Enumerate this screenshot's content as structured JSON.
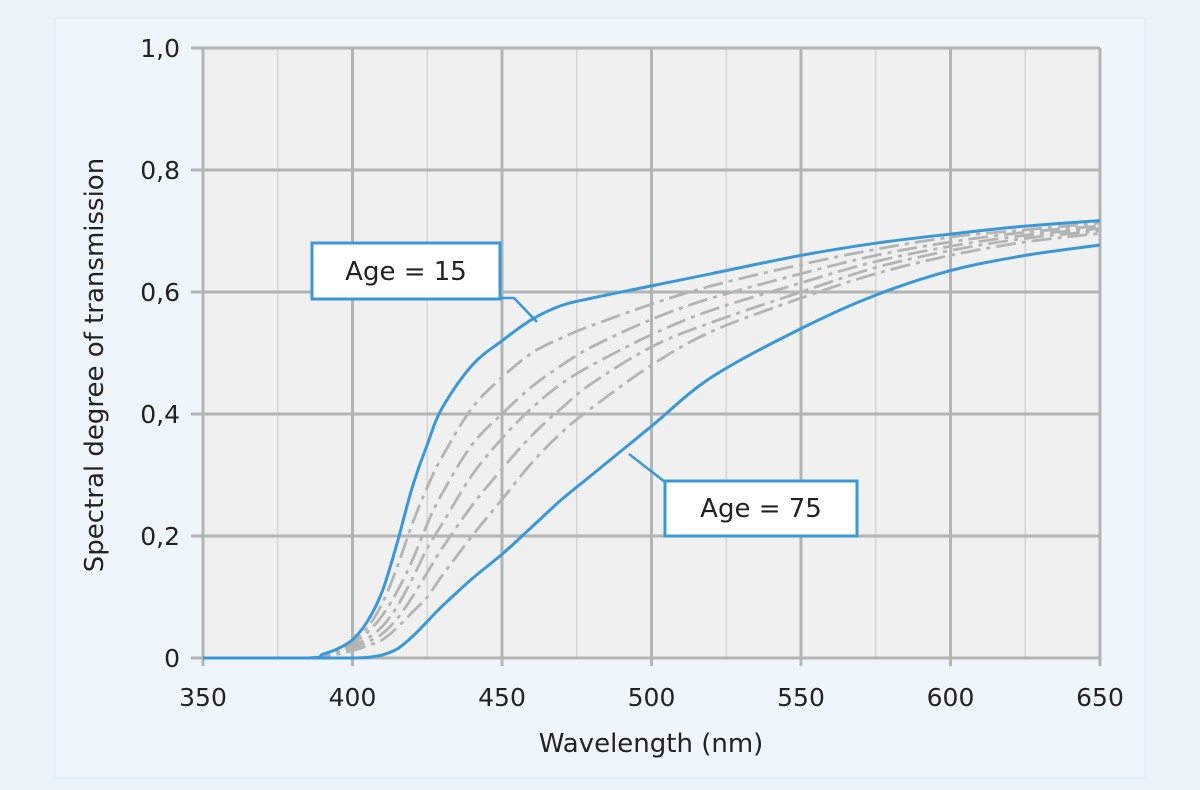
{
  "chart_data": {
    "type": "line",
    "title": "",
    "xlabel": "Wavelength (nm)",
    "ylabel": "Spectral degree of transmission",
    "xlim": [
      350,
      650
    ],
    "ylim": [
      0,
      1
    ],
    "x_ticks": [
      350,
      400,
      450,
      500,
      550,
      600,
      650
    ],
    "x_tick_labels": [
      "350",
      "400",
      "450",
      "500",
      "550",
      "600",
      "650"
    ],
    "y_ticks": [
      0,
      0.2,
      0.4,
      0.6,
      0.8,
      1.0
    ],
    "y_tick_labels": [
      "0",
      "0,2",
      "0,4",
      "0,6",
      "0,8",
      "1,0"
    ],
    "grid": true,
    "x_minor_grid_step": 25,
    "x": [
      350,
      385,
      390,
      395,
      400,
      405,
      410,
      415,
      420,
      425,
      430,
      440,
      450,
      460,
      470,
      480,
      500,
      520,
      550,
      575,
      600,
      625,
      650
    ],
    "series": [
      {
        "name": "Age = 15",
        "style": "solid",
        "color": "#3a98d8",
        "values": [
          0,
          0,
          0.006,
          0.015,
          0.03,
          0.06,
          0.11,
          0.19,
          0.28,
          0.35,
          0.41,
          0.48,
          0.52,
          0.555,
          0.578,
          0.59,
          0.61,
          0.63,
          0.66,
          0.68,
          0.695,
          0.708,
          0.717
        ]
      },
      {
        "style": "dash-dot",
        "color": "#b3b5b4",
        "values": [
          0,
          0,
          0.006,
          0.014,
          0.027,
          0.05,
          0.09,
          0.15,
          0.22,
          0.28,
          0.33,
          0.41,
          0.46,
          0.5,
          0.525,
          0.545,
          0.58,
          0.61,
          0.645,
          0.67,
          0.69,
          0.702,
          0.713
        ]
      },
      {
        "style": "dash-dot",
        "color": "#b3b5b4",
        "values": [
          0,
          0,
          0.005,
          0.013,
          0.024,
          0.042,
          0.07,
          0.11,
          0.16,
          0.22,
          0.27,
          0.35,
          0.4,
          0.445,
          0.48,
          0.51,
          0.555,
          0.59,
          0.63,
          0.66,
          0.682,
          0.698,
          0.708
        ]
      },
      {
        "style": "dash-dot",
        "color": "#b3b5b4",
        "values": [
          0,
          0,
          0.004,
          0.01,
          0.02,
          0.032,
          0.052,
          0.085,
          0.13,
          0.18,
          0.22,
          0.3,
          0.36,
          0.41,
          0.45,
          0.48,
          0.53,
          0.57,
          0.615,
          0.65,
          0.675,
          0.693,
          0.704
        ]
      },
      {
        "style": "dash-dot",
        "color": "#b3b5b4",
        "values": [
          0,
          0,
          0.003,
          0.008,
          0.016,
          0.026,
          0.04,
          0.065,
          0.1,
          0.14,
          0.18,
          0.25,
          0.31,
          0.365,
          0.41,
          0.45,
          0.51,
          0.55,
          0.6,
          0.64,
          0.668,
          0.688,
          0.7
        ]
      },
      {
        "style": "dash-dot",
        "color": "#b3b5b4",
        "values": [
          0,
          0,
          0.002,
          0.006,
          0.012,
          0.02,
          0.03,
          0.05,
          0.075,
          0.1,
          0.135,
          0.2,
          0.26,
          0.32,
          0.37,
          0.41,
          0.48,
          0.535,
          0.59,
          0.63,
          0.66,
          0.682,
          0.696
        ]
      },
      {
        "name": "Age = 75",
        "style": "solid",
        "color": "#3a98d8",
        "values": [
          0,
          0,
          0,
          0,
          0,
          0.001,
          0.005,
          0.015,
          0.035,
          0.06,
          0.085,
          0.13,
          0.17,
          0.215,
          0.26,
          0.3,
          0.38,
          0.46,
          0.54,
          0.595,
          0.635,
          0.66,
          0.677
        ]
      }
    ],
    "annotations": [
      {
        "text": "Age = 15",
        "target_series": 0
      },
      {
        "text": "Age = 75",
        "target_series": 6
      }
    ]
  },
  "colors": {
    "background": "#eaf3fa",
    "plot_area": "#f0f0f0",
    "grid_major": "#b3b5b4",
    "grid_minor": "#d4d5d4",
    "accent": "#3a98d8"
  }
}
